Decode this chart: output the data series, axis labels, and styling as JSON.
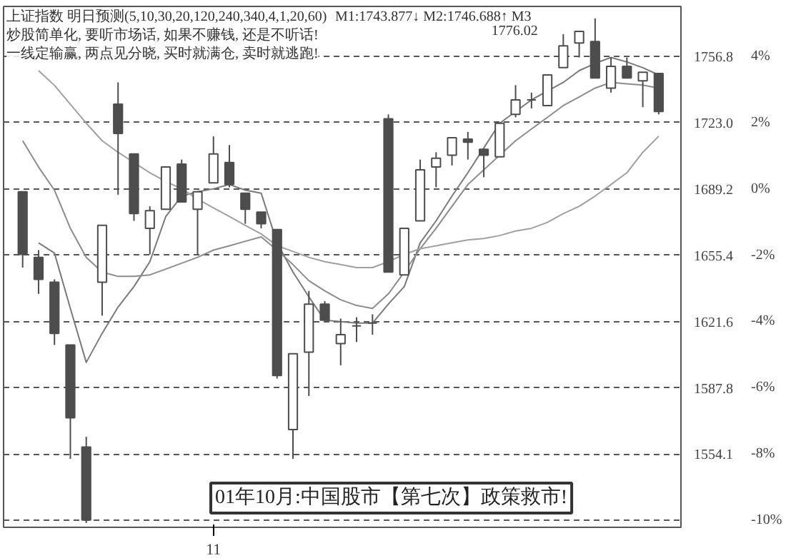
{
  "chart_data": {
    "type": "candlestick",
    "title": "上证指数  明日预测(5,10,30,20,120,240,340,4,1,20,60)",
    "categories": [
      null,
      null,
      null,
      null,
      null,
      null,
      null,
      null,
      null,
      null,
      null,
      null,
      "11",
      null,
      null,
      null,
      null,
      null,
      null,
      null,
      null,
      null,
      null,
      null,
      null,
      null,
      null,
      null,
      null,
      null,
      null,
      null,
      null,
      null,
      null,
      null,
      null,
      null,
      null,
      null,
      null
    ],
    "color": "#4d4d4d",
    "ohlc": [
      [
        1687.7,
        1687.7,
        1649.1,
        1655.8
      ],
      [
        1654.3,
        1658.0,
        1635.7,
        1643.1
      ],
      [
        1641.6,
        1643.1,
        1609.7,
        1615.6
      ],
      [
        1609.7,
        1609.7,
        1551.7,
        1572.6
      ],
      [
        1557.7,
        1562.9,
        1519.0,
        1520.5
      ],
      [
        1641.6,
        1670.6,
        1624.6,
        1670.6
      ],
      [
        1732.3,
        1743.4,
        1686.2,
        1717.4
      ],
      [
        1707.0,
        1707.0,
        1672.9,
        1676.6
      ],
      [
        1669.1,
        1680.3,
        1655.8,
        1678.1
      ],
      [
        1678.8,
        1700.3,
        1678.8,
        1700.3
      ],
      [
        1701.8,
        1704.1,
        1682.5,
        1682.5
      ],
      [
        1678.8,
        1687.7,
        1655.8,
        1687.7
      ],
      [
        1692.2,
        1715.9,
        1692.2,
        1707.0
      ],
      [
        1702.6,
        1711.5,
        1690.0,
        1691.4
      ],
      [
        1687.0,
        1687.0,
        1671.4,
        1678.8
      ],
      [
        1677.3,
        1677.3,
        1669.1,
        1671.4
      ],
      [
        1668.4,
        1668.4,
        1592.6,
        1594.1
      ],
      [
        1566.6,
        1605.2,
        1551.7,
        1605.2
      ],
      [
        1606.0,
        1637.2,
        1583.7,
        1630.5
      ],
      [
        1630.5,
        1632.0,
        1622.3,
        1622.3
      ],
      [
        1610.4,
        1623.1,
        1599.3,
        1614.9
      ],
      [
        1619.4,
        1623.8,
        1611.2,
        1619.4
      ],
      [
        1620.8,
        1625.3,
        1614.9,
        1620.8
      ],
      [
        1724.9,
        1727.1,
        1646.8,
        1646.8
      ],
      [
        1645.4,
        1669.1,
        1645.4,
        1669.1
      ],
      [
        1672.9,
        1704.1,
        1672.9,
        1698.9
      ],
      [
        1700.3,
        1707.8,
        1690.0,
        1704.8
      ],
      [
        1706.3,
        1715.2,
        1701.1,
        1715.2
      ],
      [
        1714.5,
        1718.2,
        1704.1,
        1713.0
      ],
      [
        1709.3,
        1709.3,
        1695.1,
        1706.3
      ],
      [
        1705.5,
        1722.6,
        1705.5,
        1722.6
      ],
      [
        1727.1,
        1742.0,
        1725.6,
        1734.5
      ],
      [
        1734.5,
        1738.2,
        1730.1,
        1734.5
      ],
      [
        1731.6,
        1747.2,
        1731.6,
        1747.2
      ],
      [
        1750.9,
        1768.0,
        1750.9,
        1762.0
      ],
      [
        1763.5,
        1769.4,
        1756.1,
        1769.4
      ],
      [
        1764.2,
        1776.02,
        1745.7,
        1745.7
      ],
      [
        1740.5,
        1756.1,
        1738.2,
        1751.6
      ],
      [
        1751.6,
        1756.1,
        1745.7,
        1745.7
      ],
      [
        1744.2,
        1748.6,
        1730.8,
        1748.6
      ],
      [
        1747.9,
        1747.9,
        1727.1,
        1728.6
      ]
    ],
    "series": [
      {
        "type": "line",
        "color": "#7a7a7a",
        "values": [
          null,
          1661.7,
          1656.5,
          1628.3,
          1600.8,
          1615.6,
          1629.0,
          1639.4,
          1652.1,
          1675.1,
          1685.5,
          1687.7,
          1689.2,
          1691.4,
          1688.5,
          1687.0,
          1661.7,
          1646.8,
          1634.2,
          1622.3,
          1621.6,
          1620.8,
          1620.8,
          1630.5,
          1639.4,
          1661.7,
          1672.9,
          1685.5,
          1697.4,
          1710.0,
          1722.6,
          1728.6,
          1734.5,
          1739.0,
          1743.4,
          1749.4,
          1753.1,
          1756.1,
          1753.8,
          1750.9,
          1747.2
        ]
      },
      {
        "type": "line",
        "color": "#8c8c8c",
        "values": [
          1713.7,
          1700.3,
          1688.5,
          1669.1,
          1654.3,
          1646.8,
          1644.6,
          1644.6,
          1645.4,
          1648.3,
          1651.3,
          1654.3,
          1658.0,
          1660.2,
          1662.5,
          1664.7,
          1658.0,
          1650.6,
          1642.4,
          1637.2,
          1632.7,
          1629.8,
          1628.3,
          1635.7,
          1646.8,
          1658.7,
          1669.1,
          1680.3,
          1691.4,
          1698.9,
          1706.3,
          1713.7,
          1719.7,
          1725.6,
          1731.6,
          1736.0,
          1740.5,
          1743.4,
          1742.7,
          1742.0,
          1740.5
        ]
      },
      {
        "type": "line",
        "color": "#a0a0a0",
        "values": [
          null,
          1749.4,
          1741.9,
          1732.3,
          1722.6,
          1713.7,
          1707.8,
          1702.6,
          1697.4,
          1692.9,
          1689.2,
          1684.0,
          1679.5,
          1675.1,
          1670.6,
          1666.2,
          1660.2,
          1657.3,
          1654.3,
          1652.1,
          1650.6,
          1649.1,
          1649.1,
          1652.1,
          1655.8,
          1658.7,
          1660.2,
          1661.7,
          1663.2,
          1663.9,
          1665.4,
          1667.7,
          1669.1,
          1672.1,
          1676.6,
          1680.3,
          1685.5,
          1691.4,
          1697.4,
          1707.8,
          1716.0
        ]
      }
    ],
    "ylim": [
      1516.8,
      1782.1
    ],
    "yticks": [
      1756.8,
      {
        "value": 1723.0,
        "label": "1723.0"
      },
      1689.2,
      1655.4,
      1621.6,
      1587.8,
      1554.1
    ],
    "y2lim": [
      -10.21,
      5.5
    ],
    "y2ticks": [
      {
        "value": 4,
        "label": "4%"
      },
      {
        "value": 2,
        "label": "2%"
      },
      {
        "value": 0,
        "label": "0%"
      },
      {
        "value": -2,
        "label": "-2%"
      },
      {
        "value": -4,
        "label": "-4%"
      },
      {
        "value": -6,
        "label": "-6%"
      },
      {
        "value": -8,
        "label": "-8%"
      },
      {
        "value": -10,
        "label": "-10%"
      }
    ],
    "grid": "y",
    "annotations": [
      "M1:1743.877↓  M2:1746.688↑  M3",
      "炒股简单化, 要听市场话, 如果不赚钱, 还是不听话!",
      "一线定输赢, 两点见分晓, 买时就满仓, 卖时就逃跑!",
      "1776.02",
      "01年10月:中国股市【第七次】政策救市!"
    ]
  }
}
